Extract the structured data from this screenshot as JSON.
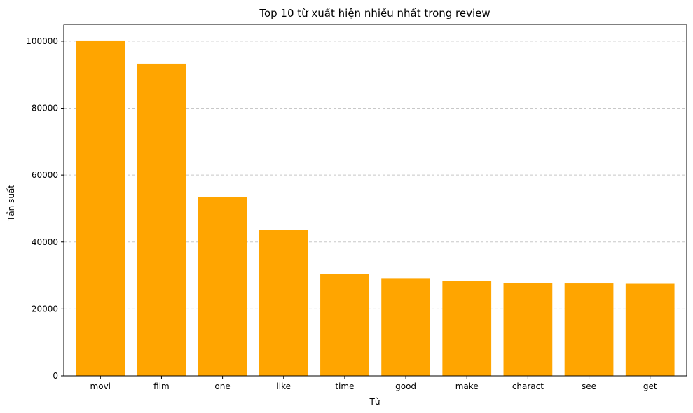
{
  "chart_data": {
    "type": "bar",
    "title": "Top 10 từ xuất hiện nhiều nhất trong review",
    "xlabel": "Từ",
    "ylabel": "Tần suất",
    "categories": [
      "movi",
      "film",
      "one",
      "like",
      "time",
      "good",
      "make",
      "charact",
      "see",
      "get"
    ],
    "values": [
      100200,
      93300,
      53400,
      43600,
      30500,
      29200,
      28400,
      27800,
      27600,
      27500
    ],
    "ylim": [
      0,
      105000
    ],
    "yticks": [
      0,
      20000,
      40000,
      60000,
      80000,
      100000
    ],
    "ytick_labels": [
      "0",
      "20000",
      "40000",
      "60000",
      "80000",
      "100000"
    ],
    "bar_color": "#FFA500",
    "grid": "y-dashed",
    "legend": "none"
  }
}
